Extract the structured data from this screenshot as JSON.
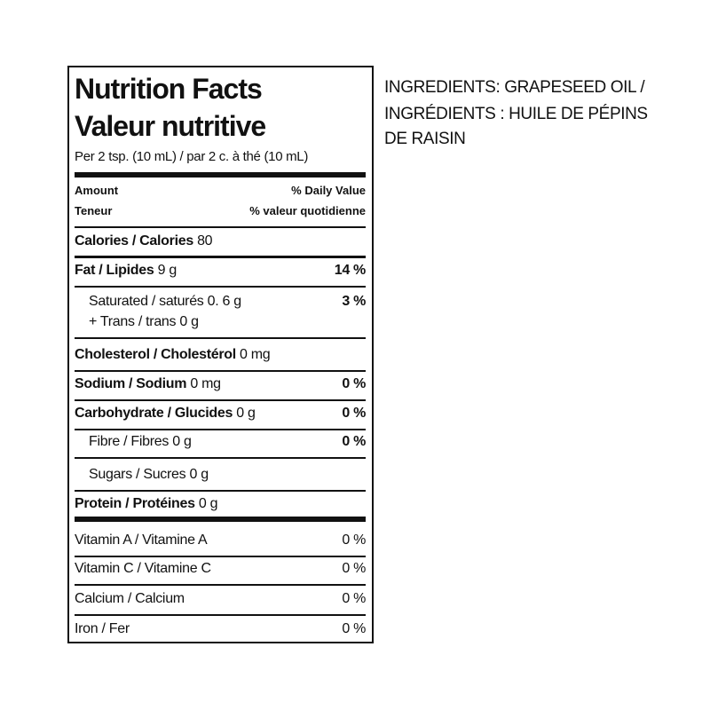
{
  "label": {
    "title_en": "Nutrition Facts",
    "title_fr": "Valeur nutritive",
    "serving": "Per 2 tsp. (10 mL) / par 2 c. à thé (10 mL)",
    "amount_en": "Amount",
    "amount_fr": "Teneur",
    "dv_en": "% Daily Value",
    "dv_fr": "% valeur quotidienne",
    "rows": [
      {
        "name": "Calories / Calories",
        "amount": "80"
      },
      {
        "name": "Fat / Lipides",
        "amount": "9 g",
        "dv": "14 %"
      },
      {
        "name": "Saturated / saturés",
        "amount": "0. 6 g",
        "dv": "3 %"
      },
      {
        "name": "+ Trans / trans",
        "amount": "0 g"
      },
      {
        "name": "Cholesterol / Cholestérol",
        "amount": "0 mg"
      },
      {
        "name": "Sodium / Sodium",
        "amount": "0 mg",
        "dv": "0 %"
      },
      {
        "name": "Carbohydrate / Glucides",
        "amount": "0 g",
        "dv": "0 %"
      },
      {
        "name": "Fibre / Fibres",
        "amount": "0 g",
        "dv": "0 %"
      },
      {
        "name": "Sugars / Sucres",
        "amount": "0 g"
      },
      {
        "name": "Protein / Protéines",
        "amount": "0 g"
      }
    ],
    "vitamins": [
      {
        "name": "Vitamin A / Vitamine A",
        "dv": "0 %"
      },
      {
        "name": "Vitamin C / Vitamine C",
        "dv": "0 %"
      },
      {
        "name": "Calcium / Calcium",
        "dv": "0 %"
      },
      {
        "name": "Iron / Fer",
        "dv": "0 %"
      }
    ]
  },
  "ingredients": [
    "INGREDIENTS: GRAPESEED OIL /",
    "INGRÉDIENTS : HUILE DE PÉPINS",
    "DE RAISIN"
  ]
}
